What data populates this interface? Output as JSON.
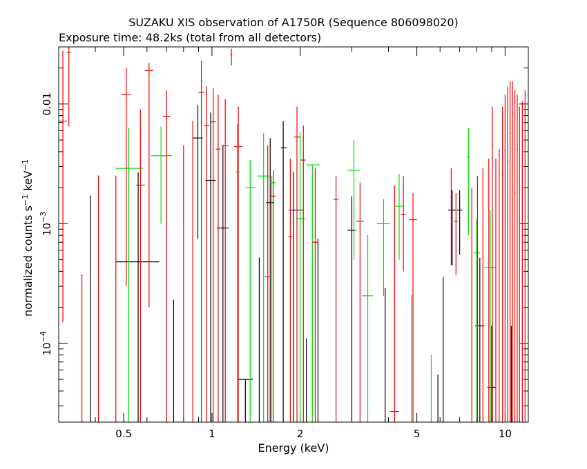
{
  "chart_data": {
    "type": "scatter",
    "title": "SUZAKU XIS observation of A1750R (Sequence 806098020)",
    "subtitle": "Exposure time: 48.2ks (total from all detectors)",
    "xlabel": "Energy (keV)",
    "ylabel": "normalized counts s",
    "ylabel_sup1": "−1",
    "ylabel_mid": " keV",
    "ylabel_sup2": "−1",
    "x_scale": "log",
    "y_scale": "log",
    "xlim": [
      0.3,
      12
    ],
    "ylim": [
      2.2e-05,
      0.03
    ],
    "x_ticks": [
      {
        "value": 0.5,
        "label": "0.5"
      },
      {
        "value": 1,
        "label": "1"
      },
      {
        "value": 2,
        "label": "2"
      },
      {
        "value": 5,
        "label": "5"
      },
      {
        "value": 10,
        "label": "10"
      }
    ],
    "y_ticks": [
      {
        "value": 0.0001,
        "base": "10",
        "exp": "−4"
      },
      {
        "value": 0.001,
        "base": "10",
        "exp": "−3"
      },
      {
        "value": 0.01,
        "base": "0.01",
        "exp": ""
      }
    ],
    "grid": false,
    "series": [
      {
        "color": "#000000",
        "points": [
          {
            "x": 0.385,
            "xlo": 0.383,
            "xhi": 0.387,
            "y": 0.0017,
            "ylo": 2.2e-05,
            "yhi": 0.0017
          },
          {
            "x": 0.56,
            "xlo": 0.47,
            "xhi": 0.66,
            "y": 0.00048,
            "ylo": 2.2e-05,
            "yhi": 0.0027
          },
          {
            "x": 0.74,
            "xlo": 0.738,
            "xhi": 0.742,
            "y": 0.00023,
            "ylo": 2.2e-05,
            "yhi": 0.00023
          },
          {
            "x": 0.895,
            "xlo": 0.86,
            "xhi": 0.93,
            "y": 0.0052,
            "ylo": 0.00075,
            "yhi": 0.0098
          },
          {
            "x": 0.99,
            "xlo": 0.95,
            "xhi": 1.03,
            "y": 0.0023,
            "ylo": 2.2e-05,
            "yhi": 0.0085
          },
          {
            "x": 1.09,
            "xlo": 1.04,
            "xhi": 1.14,
            "y": 0.00092,
            "ylo": 2.2e-05,
            "yhi": 0.0045
          },
          {
            "x": 1.3,
            "xlo": 1.22,
            "xhi": 1.38,
            "y": 5e-05,
            "ylo": 2.2e-05,
            "yhi": 5e-05
          },
          {
            "x": 1.45,
            "xlo": 1.448,
            "xhi": 1.452,
            "y": 0.00052,
            "ylo": 2.2e-05,
            "yhi": 0.00052
          },
          {
            "x": 1.58,
            "xlo": 1.53,
            "xhi": 1.63,
            "y": 0.0015,
            "ylo": 2.2e-05,
            "yhi": 0.0052
          },
          {
            "x": 1.75,
            "xlo": 1.72,
            "xhi": 1.8,
            "y": 0.0043,
            "ylo": 2.2e-05,
            "yhi": 0.0072
          },
          {
            "x": 1.9,
            "xlo": 1.83,
            "xhi": 2.05,
            "y": 0.0013,
            "ylo": 2.2e-05,
            "yhi": 0.0027
          },
          {
            "x": 2.1,
            "xlo": 2.098,
            "xhi": 2.102,
            "y": 0.00011,
            "ylo": 2.2e-05,
            "yhi": 0.00011
          },
          {
            "x": 2.3,
            "xlo": 2.298,
            "xhi": 2.302,
            "y": 0.00075,
            "ylo": 2.2e-05,
            "yhi": 0.00075
          },
          {
            "x": 3.0,
            "xlo": 2.9,
            "xhi": 3.1,
            "y": 0.00088,
            "ylo": 2.2e-05,
            "yhi": 0.0017
          },
          {
            "x": 3.9,
            "xlo": 3.898,
            "xhi": 3.902,
            "y": 0.00029,
            "ylo": 2.2e-05,
            "yhi": 0.00029
          },
          {
            "x": 5.9,
            "xlo": 5.898,
            "xhi": 5.902,
            "y": 5.5e-05,
            "ylo": 2.2e-05,
            "yhi": 5.5e-05
          },
          {
            "x": 6.15,
            "xlo": 6.148,
            "xhi": 6.152,
            "y": 0.00036,
            "ylo": 2.2e-05,
            "yhi": 0.00036
          },
          {
            "x": 6.6,
            "xlo": 6.4,
            "xhi": 6.8,
            "y": 0.0013,
            "ylo": 0.00045,
            "yhi": 0.0019
          },
          {
            "x": 7.0,
            "xlo": 6.85,
            "xhi": 7.15,
            "y": 0.0013,
            "ylo": 0.00055,
            "yhi": 0.0019
          },
          {
            "x": 8.2,
            "xlo": 7.9,
            "xhi": 8.5,
            "y": 0.00014,
            "ylo": 2.2e-05,
            "yhi": 0.00052
          },
          {
            "x": 9.0,
            "xlo": 8.7,
            "xhi": 9.3,
            "y": 4.3e-05,
            "ylo": 2.2e-05,
            "yhi": 0.00014
          },
          {
            "x": 10.5,
            "xlo": 10.498,
            "xhi": 10.502,
            "y": 0.00014,
            "ylo": 2.2e-05,
            "yhi": 0.00014
          }
        ]
      },
      {
        "color": "#00dd00",
        "points": [
          {
            "x": 0.52,
            "xlo": 0.47,
            "xhi": 0.58,
            "y": 0.0029,
            "ylo": 2.2e-05,
            "yhi": 0.0063
          },
          {
            "x": 0.67,
            "xlo": 0.62,
            "xhi": 0.73,
            "y": 0.0037,
            "ylo": 0.001,
            "yhi": 0.0065
          },
          {
            "x": 1.22,
            "xlo": 1.2,
            "xhi": 1.24,
            "y": 0.0027,
            "ylo": 2.2e-05,
            "yhi": 0.0068
          },
          {
            "x": 1.35,
            "xlo": 1.3,
            "xhi": 1.4,
            "y": 0.002,
            "ylo": 2.2e-05,
            "yhi": 0.0034
          },
          {
            "x": 1.5,
            "xlo": 1.43,
            "xhi": 1.57,
            "y": 0.0025,
            "ylo": 2.2e-05,
            "yhi": 0.0057
          },
          {
            "x": 1.6,
            "xlo": 1.57,
            "xhi": 1.65,
            "y": 0.0022,
            "ylo": 2.2e-05,
            "yhi": 0.0025
          },
          {
            "x": 2.0,
            "xlo": 1.93,
            "xhi": 2.08,
            "y": 0.0011,
            "ylo": 2.2e-05,
            "yhi": 0.0058
          },
          {
            "x": 2.2,
            "xlo": 2.1,
            "xhi": 2.33,
            "y": 0.0031,
            "ylo": 2.2e-05,
            "yhi": 0.0031
          },
          {
            "x": 3.05,
            "xlo": 2.9,
            "xhi": 3.2,
            "y": 0.0028,
            "ylo": 0.0005,
            "yhi": 0.005
          },
          {
            "x": 3.4,
            "xlo": 3.25,
            "xhi": 3.55,
            "y": 0.00025,
            "ylo": 2.2e-05,
            "yhi": 0.0008
          },
          {
            "x": 3.85,
            "xlo": 3.65,
            "xhi": 4.05,
            "y": 0.001,
            "ylo": 0.00025,
            "yhi": 0.0016
          },
          {
            "x": 4.35,
            "xlo": 4.2,
            "xhi": 4.5,
            "y": 0.0014,
            "ylo": 0.0005,
            "yhi": 0.0026
          },
          {
            "x": 4.8,
            "xlo": 4.78,
            "xhi": 4.82,
            "y": 0.00025,
            "ylo": 2.2e-05,
            "yhi": 0.00025
          },
          {
            "x": 5.6,
            "xlo": 5.598,
            "xhi": 5.602,
            "y": 8e-05,
            "ylo": 2.2e-05,
            "yhi": 8e-05
          },
          {
            "x": 7.5,
            "xlo": 7.4,
            "xhi": 7.6,
            "y": 0.0036,
            "ylo": 0.0008,
            "yhi": 0.0063
          },
          {
            "x": 8.0,
            "xlo": 7.8,
            "xhi": 8.2,
            "y": 0.00057,
            "ylo": 2.2e-05,
            "yhi": 0.0011
          },
          {
            "x": 8.9,
            "xlo": 8.5,
            "xhi": 9.3,
            "y": 0.00043,
            "ylo": 2.2e-05,
            "yhi": 0.0013
          }
        ]
      },
      {
        "color": "#ee0000",
        "points": [
          {
            "x": 0.31,
            "xlo": 0.3,
            "xhi": 0.32,
            "y": 0.0072,
            "ylo": 0.00015,
            "yhi": 0.028
          },
          {
            "x": 0.325,
            "xlo": 0.32,
            "xhi": 0.33,
            "y": 0.027,
            "ylo": 0.0065,
            "yhi": 0.03
          },
          {
            "x": 0.36,
            "xlo": 0.358,
            "xhi": 0.362,
            "y": 0.00037,
            "ylo": 2.2e-05,
            "yhi": 0.00037
          },
          {
            "x": 0.41,
            "xlo": 0.408,
            "xhi": 0.412,
            "y": 0.0025,
            "ylo": 2.2e-05,
            "yhi": 0.0025
          },
          {
            "x": 0.47,
            "xlo": 0.468,
            "xhi": 0.472,
            "y": 0.0025,
            "ylo": 2.2e-05,
            "yhi": 0.0025
          },
          {
            "x": 0.51,
            "xlo": 0.49,
            "xhi": 0.53,
            "y": 0.012,
            "ylo": 0.0003,
            "yhi": 0.02
          },
          {
            "x": 0.57,
            "xlo": 0.55,
            "xhi": 0.59,
            "y": 0.0021,
            "ylo": 2.2e-05,
            "yhi": 0.009
          },
          {
            "x": 0.61,
            "xlo": 0.59,
            "xhi": 0.63,
            "y": 0.019,
            "ylo": 0.0002,
            "yhi": 0.022
          },
          {
            "x": 0.7,
            "xlo": 0.68,
            "xhi": 0.72,
            "y": 0.0079,
            "ylo": 2.2e-05,
            "yhi": 0.013
          },
          {
            "x": 0.8,
            "xlo": 0.798,
            "xhi": 0.802,
            "y": 0.0045,
            "ylo": 2.2e-05,
            "yhi": 0.0045
          },
          {
            "x": 0.86,
            "xlo": 0.858,
            "xhi": 0.862,
            "y": 0.0072,
            "ylo": 2.2e-05,
            "yhi": 0.0072
          },
          {
            "x": 0.92,
            "xlo": 0.9,
            "xhi": 0.94,
            "y": 0.0125,
            "ylo": 2.2e-05,
            "yhi": 0.023
          },
          {
            "x": 0.96,
            "xlo": 0.94,
            "xhi": 0.98,
            "y": 0.0066,
            "ylo": 2.2e-05,
            "yhi": 0.014
          },
          {
            "x": 1.01,
            "xlo": 0.99,
            "xhi": 1.03,
            "y": 0.0071,
            "ylo": 2.2e-05,
            "yhi": 0.0135
          },
          {
            "x": 1.05,
            "xlo": 1.03,
            "xhi": 1.07,
            "y": 0.0042,
            "ylo": 2.2e-05,
            "yhi": 0.012
          },
          {
            "x": 1.11,
            "xlo": 1.08,
            "xhi": 1.14,
            "y": 0.0045,
            "ylo": 2.2e-05,
            "yhi": 0.011
          },
          {
            "x": 1.165,
            "xlo": 1.155,
            "xhi": 1.175,
            "y": 0.026,
            "ylo": 0.021,
            "yhi": 0.029
          },
          {
            "x": 1.23,
            "xlo": 1.19,
            "xhi": 1.27,
            "y": 0.0044,
            "ylo": 2.2e-05,
            "yhi": 0.0095
          },
          {
            "x": 1.55,
            "xlo": 1.52,
            "xhi": 1.58,
            "y": 0.00036,
            "ylo": 2.2e-05,
            "yhi": 0.0045
          },
          {
            "x": 1.62,
            "xlo": 1.59,
            "xhi": 1.65,
            "y": 0.0017,
            "ylo": 2.2e-05,
            "yhi": 0.0028
          },
          {
            "x": 1.85,
            "xlo": 1.82,
            "xhi": 1.88,
            "y": 0.00078,
            "ylo": 2.2e-05,
            "yhi": 0.0035
          },
          {
            "x": 1.95,
            "xlo": 1.9,
            "xhi": 2.0,
            "y": 0.0053,
            "ylo": 2.2e-05,
            "yhi": 0.0095
          },
          {
            "x": 2.05,
            "xlo": 2.01,
            "xhi": 2.09,
            "y": 0.0034,
            "ylo": 2.2e-05,
            "yhi": 0.0066
          },
          {
            "x": 2.25,
            "xlo": 2.19,
            "xhi": 2.31,
            "y": 0.0007,
            "ylo": 2.2e-05,
            "yhi": 0.0029
          },
          {
            "x": 2.65,
            "xlo": 2.6,
            "xhi": 2.7,
            "y": 0.0016,
            "ylo": 2.2e-05,
            "yhi": 0.0025
          },
          {
            "x": 3.2,
            "xlo": 3.1,
            "xhi": 3.3,
            "y": 0.00105,
            "ylo": 2.2e-05,
            "yhi": 0.0022
          },
          {
            "x": 4.2,
            "xlo": 4.05,
            "xhi": 4.35,
            "y": 2.7e-05,
            "ylo": 2.2e-05,
            "yhi": 0.0021
          },
          {
            "x": 4.5,
            "xlo": 4.4,
            "xhi": 4.6,
            "y": 0.0012,
            "ylo": 0.0004,
            "yhi": 0.0025
          },
          {
            "x": 4.85,
            "xlo": 4.7,
            "xhi": 5.0,
            "y": 0.00108,
            "ylo": 2.2e-05,
            "yhi": 0.0018
          },
          {
            "x": 6.8,
            "xlo": 6.7,
            "xhi": 6.9,
            "y": 0.00105,
            "ylo": 0.00037,
            "yhi": 0.0018
          },
          {
            "x": 6.55,
            "xlo": 6.548,
            "xhi": 6.552,
            "y": 0.0029,
            "ylo": 0.00045,
            "yhi": 0.0029
          },
          {
            "x": 7.7,
            "xlo": 7.698,
            "xhi": 7.702,
            "y": 0.002,
            "ylo": 2.2e-05,
            "yhi": 0.002
          },
          {
            "x": 8.05,
            "xlo": 8.048,
            "xhi": 8.052,
            "y": 0.0025,
            "ylo": 2.2e-05,
            "yhi": 0.0025
          },
          {
            "x": 8.4,
            "xlo": 8.398,
            "xhi": 8.402,
            "y": 0.0029,
            "ylo": 2.2e-05,
            "yhi": 0.0029
          },
          {
            "x": 8.8,
            "xlo": 8.798,
            "xhi": 8.802,
            "y": 0.0035,
            "ylo": 2.2e-05,
            "yhi": 0.0035
          },
          {
            "x": 9.05,
            "xlo": 9.0,
            "xhi": 9.1,
            "y": 0.0045,
            "ylo": 2.2e-05,
            "yhi": 0.0095
          },
          {
            "x": 9.3,
            "xlo": 9.298,
            "xhi": 9.302,
            "y": 0.0035,
            "ylo": 2.2e-05,
            "yhi": 0.0035
          },
          {
            "x": 9.55,
            "xlo": 9.548,
            "xhi": 9.552,
            "y": 0.0042,
            "ylo": 2.2e-05,
            "yhi": 0.0042
          },
          {
            "x": 9.8,
            "xlo": 9.75,
            "xhi": 9.85,
            "y": 0.0026,
            "ylo": 2.2e-05,
            "yhi": 0.0095
          },
          {
            "x": 10.0,
            "xlo": 9.95,
            "xhi": 10.05,
            "y": 0.0041,
            "ylo": 2.2e-05,
            "yhi": 0.012
          },
          {
            "x": 10.2,
            "xlo": 10.15,
            "xhi": 10.25,
            "y": 0.0033,
            "ylo": 2.2e-05,
            "yhi": 0.014
          },
          {
            "x": 10.4,
            "xlo": 10.35,
            "xhi": 10.45,
            "y": 0.0057,
            "ylo": 2.2e-05,
            "yhi": 0.0155
          },
          {
            "x": 10.6,
            "xlo": 10.55,
            "xhi": 10.65,
            "y": 0.0083,
            "ylo": 2.2e-05,
            "yhi": 0.0155
          },
          {
            "x": 10.8,
            "xlo": 10.75,
            "xhi": 10.85,
            "y": 0.0018,
            "ylo": 2.2e-05,
            "yhi": 0.013
          },
          {
            "x": 11.0,
            "xlo": 10.95,
            "xhi": 11.05,
            "y": 0.0042,
            "ylo": 2.2e-05,
            "yhi": 0.012
          },
          {
            "x": 11.2,
            "xlo": 11.15,
            "xhi": 11.25,
            "y": 0.0024,
            "ylo": 2.2e-05,
            "yhi": 0.0095
          },
          {
            "x": 11.45,
            "xlo": 11.4,
            "xhi": 11.5,
            "y": 0.0019,
            "ylo": 2.2e-05,
            "yhi": 0.0105
          },
          {
            "x": 11.7,
            "xlo": 11.65,
            "xhi": 11.75,
            "y": 0.0001,
            "ylo": 2.2e-05,
            "yhi": 0.013
          }
        ]
      }
    ]
  }
}
